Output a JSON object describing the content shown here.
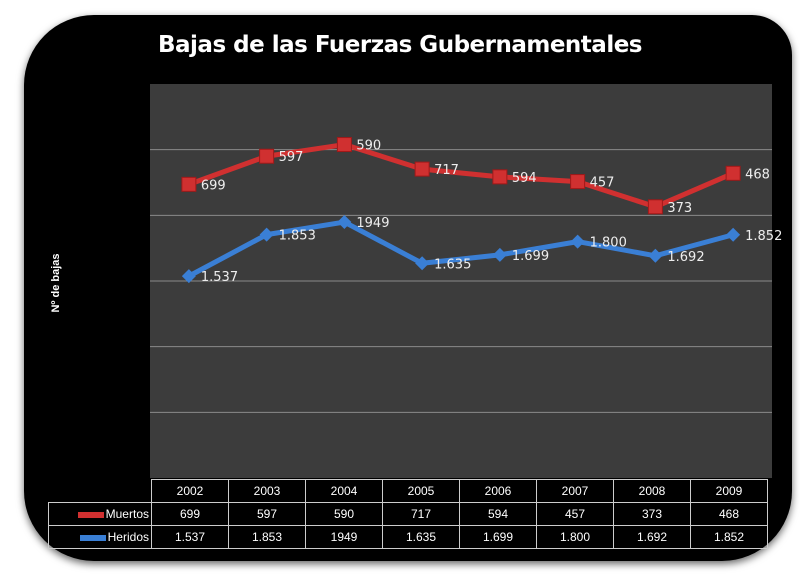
{
  "chart_data": {
    "type": "line",
    "stacked": true,
    "title": "Bajas de las Fuerzas Gubernamentales",
    "xlabel": "",
    "ylabel": "Nº de bajas",
    "ylim": [
      0,
      3000
    ],
    "ytick_step": 500,
    "grid": true,
    "legend": "data-table",
    "categories": [
      "2002",
      "2003",
      "2004",
      "2005",
      "2006",
      "2007",
      "2008",
      "2009"
    ],
    "series": [
      {
        "name": "Muertos",
        "color": "#d03030",
        "marker": "square",
        "values": [
          699,
          597,
          590,
          717,
          594,
          457,
          373,
          468
        ],
        "labels": [
          "699",
          "597",
          "590",
          "717",
          "594",
          "457",
          "373",
          "468"
        ]
      },
      {
        "name": "Heridos",
        "color": "#3a7fd5",
        "marker": "diamond",
        "values": [
          1537,
          1853,
          1949,
          1635,
          1699,
          1800,
          1692,
          1852
        ],
        "labels": [
          "1.537",
          "1.853",
          "1949",
          "1.635",
          "1.699",
          "1.800",
          "1.692",
          "1.852"
        ]
      }
    ]
  }
}
